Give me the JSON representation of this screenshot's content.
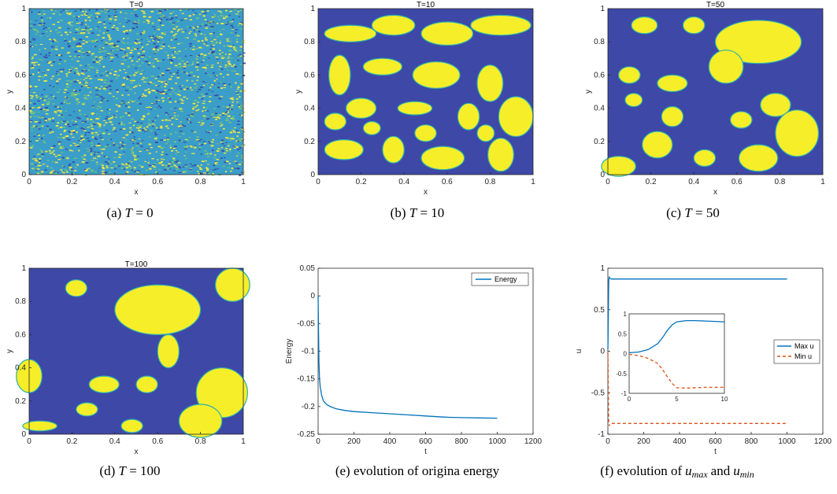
{
  "colors": {
    "blue": "#3e48a6",
    "yellow": "#f7ee2a",
    "line": "#0072bd",
    "orange": "#d95319"
  },
  "chart_data": [
    {
      "type": "heatmap",
      "title": "T=0",
      "xlabel": "x",
      "ylabel": "y",
      "xlim": [
        0,
        1
      ],
      "ylim": [
        0,
        1
      ],
      "xticks": [
        "0",
        "0.2",
        "0.4",
        "0.6",
        "0.8",
        "1"
      ],
      "yticks": [
        "0",
        "0.2",
        "0.4",
        "0.6",
        "0.8",
        "1"
      ],
      "caption": {
        "label": "(a)",
        "var": "T",
        "rest": "= 0"
      }
    },
    {
      "type": "heatmap",
      "title": "T=10",
      "xlabel": "x",
      "ylabel": "y",
      "xlim": [
        0,
        1
      ],
      "ylim": [
        0,
        1
      ],
      "xticks": [
        "0",
        "0.2",
        "0.4",
        "0.6",
        "0.8",
        "1"
      ],
      "yticks": [
        "0",
        "0.2",
        "0.4",
        "0.6",
        "0.8",
        "1"
      ],
      "caption": {
        "label": "(b)",
        "var": "T",
        "rest": "= 10"
      }
    },
    {
      "type": "heatmap",
      "title": "T=50",
      "xlabel": "x",
      "ylabel": "y",
      "xlim": [
        0,
        1
      ],
      "ylim": [
        0,
        1
      ],
      "xticks": [
        "0",
        "0.2",
        "0.4",
        "0.6",
        "0.8",
        "1"
      ],
      "yticks": [
        "0",
        "0.2",
        "0.4",
        "0.6",
        "0.8",
        "1"
      ],
      "caption": {
        "label": "(c)",
        "var": "T",
        "rest": "= 50"
      }
    },
    {
      "type": "heatmap",
      "title": "T=100",
      "xlabel": "x",
      "ylabel": "y",
      "xlim": [
        0,
        1
      ],
      "ylim": [
        0,
        1
      ],
      "xticks": [
        "0",
        "0.2",
        "0.4",
        "0.6",
        "0.8",
        "1"
      ],
      "yticks": [
        "0",
        "0.2",
        "0.4",
        "0.6",
        "0.8",
        "1"
      ],
      "caption": {
        "label": "(d)",
        "var": "T",
        "rest": "= 100"
      }
    },
    {
      "type": "line",
      "xlabel": "t",
      "ylabel": "Energy",
      "xlim": [
        0,
        1200
      ],
      "ylim": [
        -0.25,
        0.05
      ],
      "xticks": [
        "0",
        "200",
        "400",
        "600",
        "800",
        "1000",
        "1200"
      ],
      "yticks": [
        "-0.25",
        "-0.2",
        "-0.15",
        "-0.1",
        "-0.05",
        "0",
        "0.05"
      ],
      "legend_position": "top-right",
      "series": [
        {
          "name": "Energy",
          "x": [
            0,
            2,
            5,
            8,
            12,
            20,
            30,
            50,
            75,
            100,
            150,
            200,
            300,
            400,
            500,
            600,
            700,
            730,
            800,
            900,
            1000
          ],
          "y": [
            0.0,
            -0.06,
            -0.12,
            -0.15,
            -0.165,
            -0.18,
            -0.19,
            -0.197,
            -0.201,
            -0.204,
            -0.207,
            -0.209,
            -0.211,
            -0.213,
            -0.215,
            -0.217,
            -0.219,
            -0.2195,
            -0.22,
            -0.2205,
            -0.221
          ]
        }
      ],
      "caption": {
        "text": "(e) evolution of origina energy"
      }
    },
    {
      "type": "line",
      "xlabel": "t",
      "ylabel": "u",
      "xlim": [
        0,
        1200
      ],
      "ylim": [
        -1,
        1
      ],
      "xticks": [
        "0",
        "200",
        "400",
        "600",
        "800",
        "1000",
        "1200"
      ],
      "yticks": [
        "-1",
        "-0.5",
        "0",
        "0.5",
        "1"
      ],
      "legend_position": "right",
      "series": [
        {
          "name": "Max u",
          "x": [
            0,
            1,
            3,
            5,
            8,
            10,
            20,
            1000
          ],
          "y": [
            0.02,
            0.1,
            0.5,
            0.85,
            0.9,
            0.88,
            0.87,
            0.87
          ]
        },
        {
          "name": "Min u",
          "x": [
            0,
            1,
            3,
            5,
            8,
            10,
            20,
            1000
          ],
          "y": [
            -0.02,
            -0.1,
            -0.5,
            -0.85,
            -0.9,
            -0.88,
            -0.87,
            -0.87
          ]
        }
      ],
      "inset": {
        "xlim": [
          0,
          10
        ],
        "ylim": [
          -1,
          1
        ],
        "xticks": [
          "0",
          "5",
          "10"
        ],
        "yticks": [
          "-1",
          "-0.5",
          "0",
          "0.5",
          "1"
        ],
        "series": [
          {
            "name": "Max u",
            "x": [
              0,
              1,
              2,
              3,
              3.5,
              4,
              4.5,
              5,
              6,
              7,
              8,
              9,
              10
            ],
            "y": [
              0.02,
              0.04,
              0.1,
              0.25,
              0.4,
              0.58,
              0.72,
              0.8,
              0.83,
              0.83,
              0.82,
              0.81,
              0.8
            ]
          },
          {
            "name": "Min u",
            "x": [
              0,
              1,
              2,
              3,
              3.5,
              4,
              4.5,
              5,
              6,
              7,
              8,
              9,
              10
            ],
            "y": [
              -0.02,
              -0.05,
              -0.12,
              -0.25,
              -0.4,
              -0.58,
              -0.75,
              -0.86,
              -0.87,
              -0.86,
              -0.85,
              -0.85,
              -0.85
            ]
          }
        ]
      },
      "caption": {
        "pre": "(f) evolution of",
        "v1": "u",
        "s1": "max",
        "mid": "and",
        "v2": "u",
        "s2": "min"
      }
    }
  ]
}
